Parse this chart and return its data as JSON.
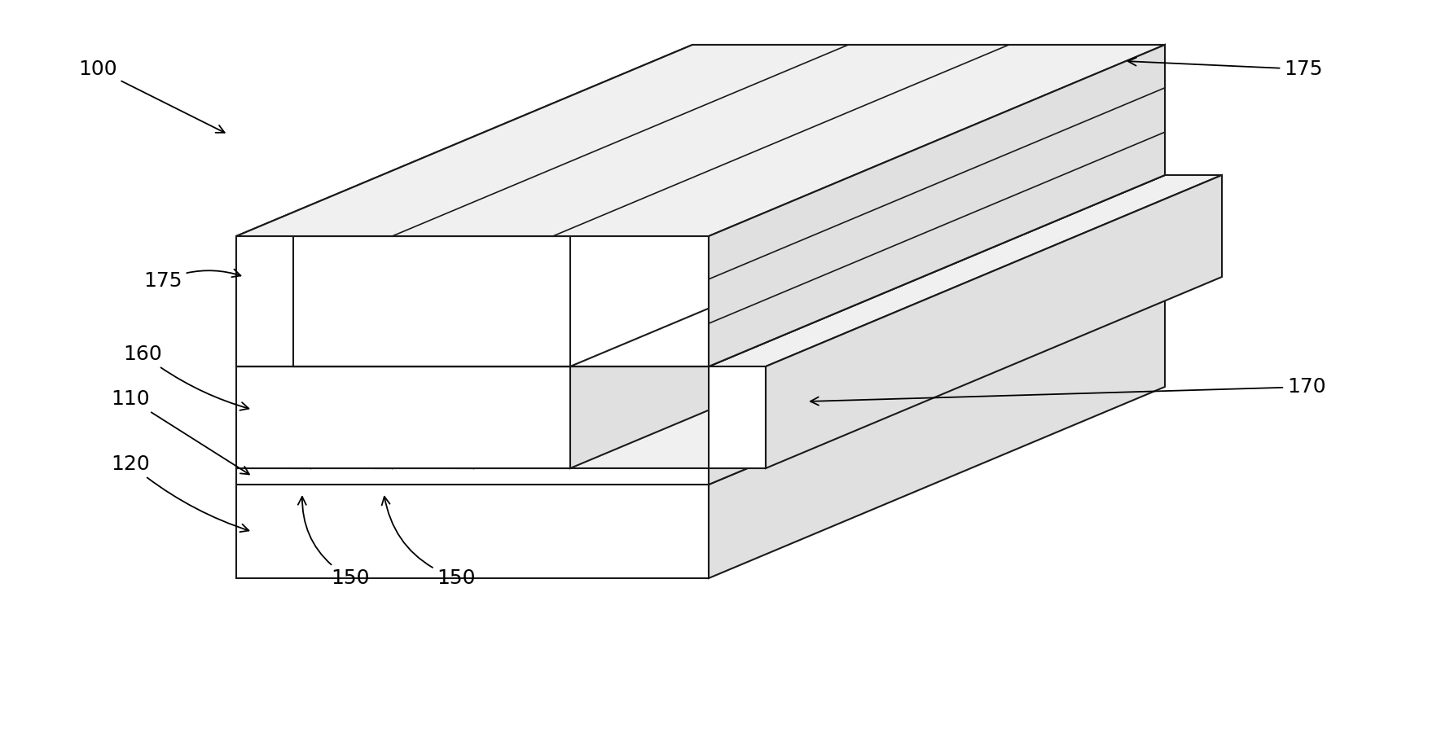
{
  "bg_color": "#ffffff",
  "lc": "#1a1a1a",
  "lw": 1.5,
  "figsize": [
    17.8,
    9.05
  ],
  "dpi": 100,
  "face_white": "#ffffff",
  "face_light": "#f0f0f0",
  "face_mid": "#e0e0e0",
  "face_dark": "#cccccc",
  "face_darker": "#b8b8b8"
}
